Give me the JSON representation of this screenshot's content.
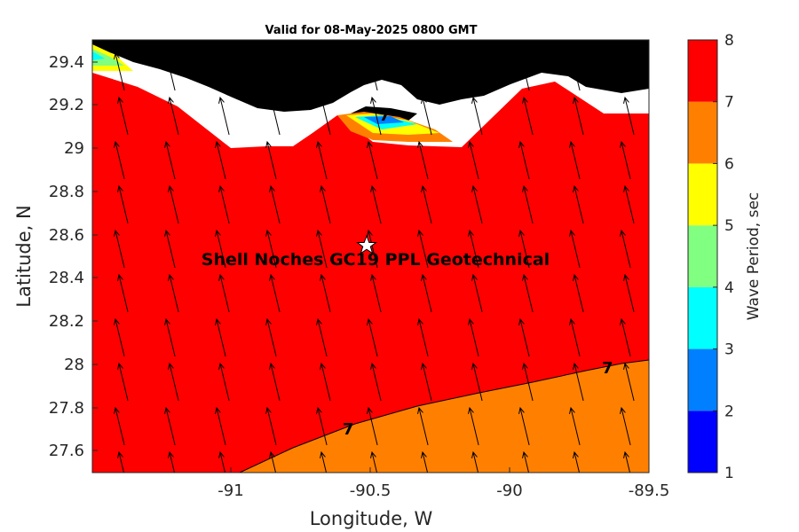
{
  "title": "Valid for 08-May-2025 0800 GMT",
  "annotation": "Shell Noches   GC19 PPL  Geotechnical",
  "map": {
    "xlabel": "Longitude, W",
    "ylabel": "Latitude, N",
    "xlim": [
      -91.5,
      -89.5
    ],
    "ylim": [
      27.5,
      29.5
    ],
    "xticks": [
      "-91",
      "-90.5",
      "-90",
      "-89.5"
    ],
    "yticks": [
      "27.6",
      "27.8",
      "28",
      "28.2",
      "28.4",
      "28.6",
      "28.8",
      "29",
      "29.2",
      "29.4"
    ],
    "site_marker": {
      "symbol": "white-star",
      "lon": -90.5,
      "lat": 28.55
    },
    "contour_labels": [
      "7",
      "7",
      "7"
    ],
    "wave_direction": "arrows point to the north-north-west"
  },
  "colorbar": {
    "label": "Wave Period, sec",
    "ticks": [
      "1",
      "2",
      "3",
      "4",
      "5",
      "6",
      "7",
      "8"
    ],
    "bands": [
      {
        "from": 1,
        "to": 2,
        "color": "#0000ff"
      },
      {
        "from": 2,
        "to": 3,
        "color": "#0080ff"
      },
      {
        "from": 3,
        "to": 4,
        "color": "#00ffff"
      },
      {
        "from": 4,
        "to": 5,
        "color": "#80ff80"
      },
      {
        "from": 5,
        "to": 6,
        "color": "#ffff00"
      },
      {
        "from": 6,
        "to": 7,
        "color": "#ff8000"
      },
      {
        "from": 7,
        "to": 8,
        "color": "#ff0000"
      }
    ]
  },
  "colors": {
    "red": "#ff0000",
    "orange": "#ff8000",
    "land": "#000000"
  }
}
